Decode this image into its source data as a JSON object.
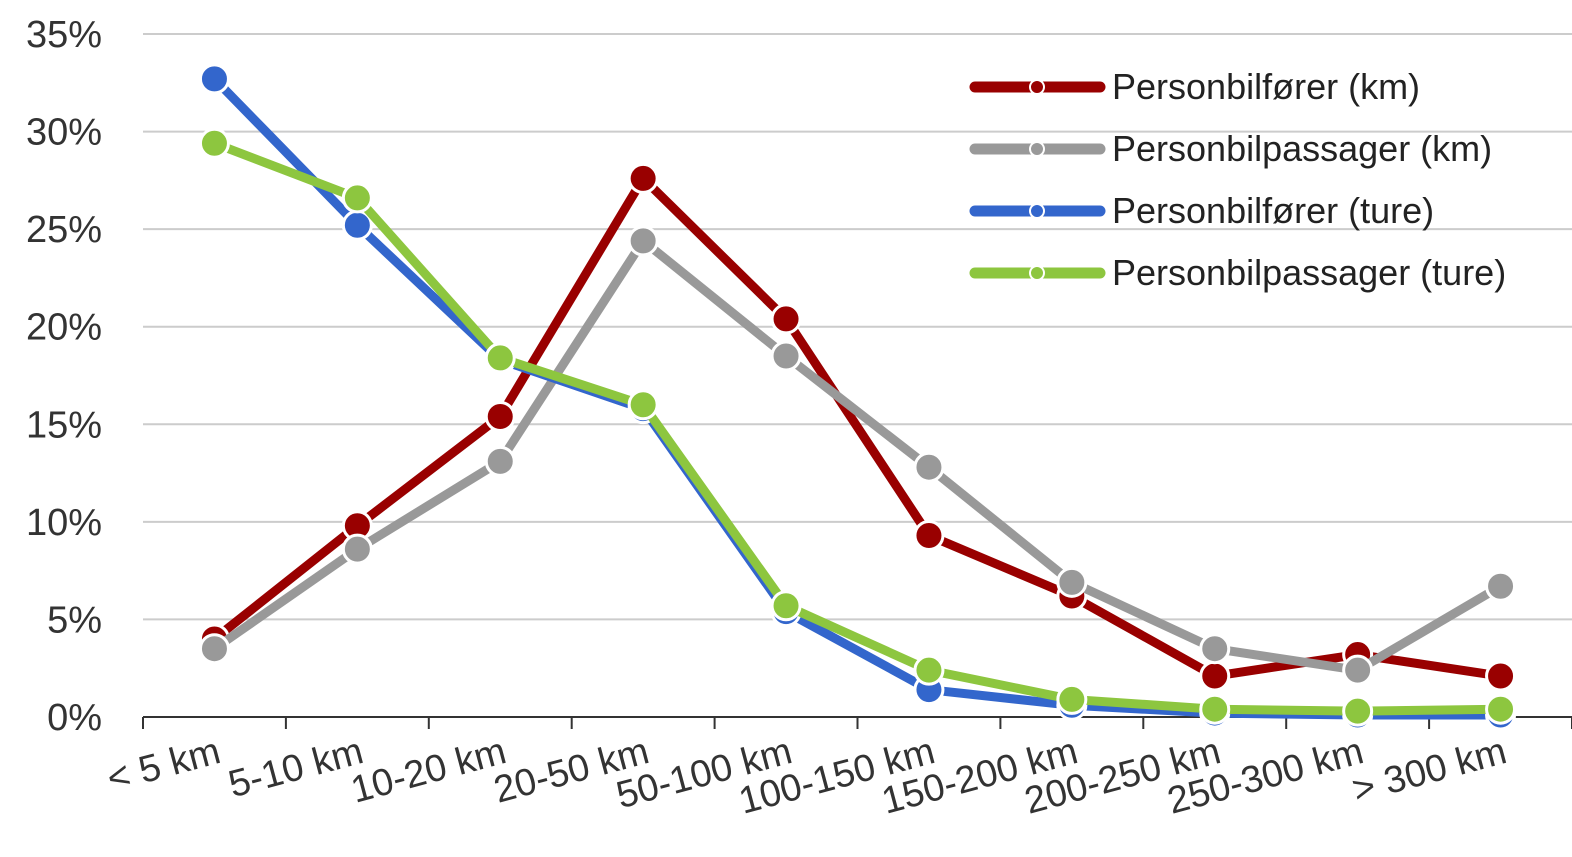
{
  "chart_data": {
    "type": "line",
    "title": "",
    "xlabel": "",
    "ylabel": "",
    "categories": [
      "< 5 km",
      "5-10 km",
      "10-20 km",
      "20-50 km",
      "50-100 km",
      "100-150 km",
      "150-200 km",
      "200-250 km",
      "250-300 km",
      "> 300 km"
    ],
    "ylim": [
      0,
      35
    ],
    "yticks": [
      0,
      5,
      10,
      15,
      20,
      25,
      30,
      35
    ],
    "ytick_labels": [
      "0%",
      "5%",
      "10%",
      "15%",
      "20%",
      "25%",
      "30%",
      "35%"
    ],
    "grid": true,
    "legend_position": "top-right",
    "series": [
      {
        "name": "Personbilfører (km)",
        "color": "#990000",
        "values": [
          4.0,
          9.8,
          15.4,
          27.6,
          20.4,
          9.3,
          6.2,
          2.1,
          3.2,
          2.1
        ]
      },
      {
        "name": "Personbilpassager (km)",
        "color": "#999999",
        "values": [
          3.5,
          8.6,
          13.1,
          24.4,
          18.5,
          12.8,
          6.9,
          3.5,
          2.4,
          6.7
        ]
      },
      {
        "name": "Personbilfører (ture)",
        "color": "#3366cc",
        "values": [
          32.7,
          25.2,
          18.3,
          15.8,
          5.4,
          1.4,
          0.6,
          0.2,
          0.1,
          0.1
        ]
      },
      {
        "name": "Personbilpassager (ture)",
        "color": "#8dc63f",
        "values": [
          29.4,
          26.6,
          18.4,
          16.0,
          5.7,
          2.4,
          0.9,
          0.4,
          0.3,
          0.4
        ]
      }
    ]
  }
}
